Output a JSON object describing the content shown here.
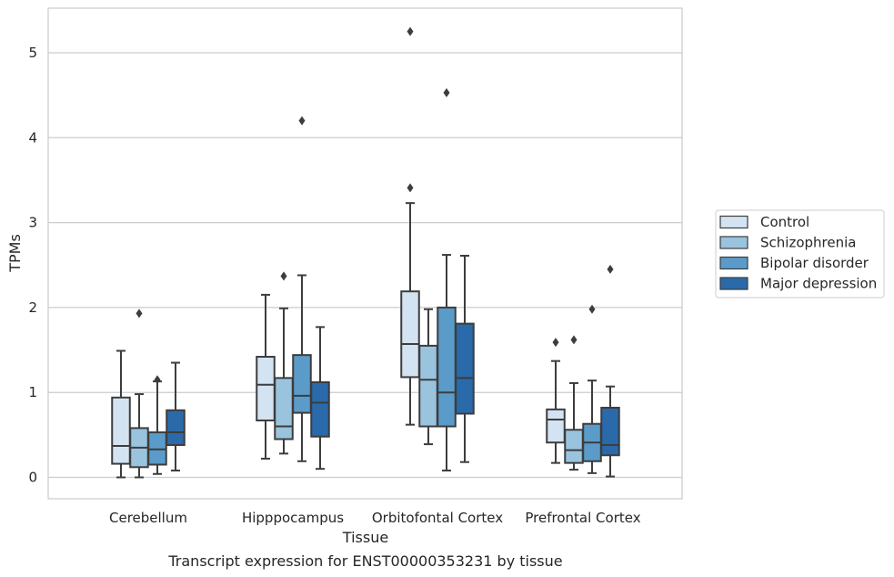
{
  "caption": "Transcript expression for ENST00000353231 by tissue",
  "chart_data": {
    "type": "box",
    "title": "",
    "xlabel": "Tissue",
    "ylabel": "TPMs",
    "ylim": [
      -0.25,
      5.5
    ],
    "yticks": [
      0,
      1,
      2,
      3,
      4,
      5
    ],
    "categories": [
      "Cerebellum",
      "Hipppocampus",
      "Orbitofontal Cortex",
      "Prefrontal Cortex"
    ],
    "grid": "horizontal",
    "legend_position": "right",
    "series": [
      {
        "name": "Control",
        "color": "#d3e3f2",
        "boxes": [
          {
            "whislo": 0.0,
            "q1": 0.16,
            "med": 0.37,
            "q3": 0.94,
            "whishi": 1.49,
            "fliers": []
          },
          {
            "whislo": 0.22,
            "q1": 0.67,
            "med": 1.09,
            "q3": 1.42,
            "whishi": 2.15,
            "fliers": []
          },
          {
            "whislo": 0.62,
            "q1": 1.18,
            "med": 1.57,
            "q3": 2.19,
            "whishi": 3.23,
            "fliers": [
              3.41,
              5.25
            ]
          },
          {
            "whislo": 0.17,
            "q1": 0.41,
            "med": 0.68,
            "q3": 0.8,
            "whishi": 1.37,
            "fliers": [
              1.59
            ]
          }
        ]
      },
      {
        "name": "Schizophrenia",
        "color": "#9ac4de",
        "boxes": [
          {
            "whislo": 0.0,
            "q1": 0.12,
            "med": 0.35,
            "q3": 0.58,
            "whishi": 0.98,
            "fliers": [
              1.93
            ]
          },
          {
            "whislo": 0.28,
            "q1": 0.45,
            "med": 0.6,
            "q3": 1.17,
            "whishi": 1.99,
            "fliers": [
              2.37
            ]
          },
          {
            "whislo": 0.39,
            "q1": 0.6,
            "med": 1.15,
            "q3": 1.55,
            "whishi": 1.98,
            "fliers": []
          },
          {
            "whislo": 0.09,
            "q1": 0.17,
            "med": 0.32,
            "q3": 0.56,
            "whishi": 1.11,
            "fliers": [
              1.62
            ]
          }
        ]
      },
      {
        "name": "Bipolar disorder",
        "color": "#5b9bc9",
        "boxes": [
          {
            "whislo": 0.04,
            "q1": 0.15,
            "med": 0.33,
            "q3": 0.53,
            "whishi": 1.13,
            "fliers": [
              1.15
            ]
          },
          {
            "whislo": 0.19,
            "q1": 0.76,
            "med": 0.96,
            "q3": 1.44,
            "whishi": 2.38,
            "fliers": [
              4.2
            ]
          },
          {
            "whislo": 0.08,
            "q1": 0.6,
            "med": 1.0,
            "q3": 2.0,
            "whishi": 2.62,
            "fliers": [
              4.53
            ]
          },
          {
            "whislo": 0.05,
            "q1": 0.19,
            "med": 0.41,
            "q3": 0.63,
            "whishi": 1.14,
            "fliers": [
              1.98
            ]
          }
        ]
      },
      {
        "name": "Major depression",
        "color": "#2a6aaa",
        "boxes": [
          {
            "whislo": 0.08,
            "q1": 0.38,
            "med": 0.53,
            "q3": 0.79,
            "whishi": 1.35,
            "fliers": []
          },
          {
            "whislo": 0.1,
            "q1": 0.48,
            "med": 0.88,
            "q3": 1.12,
            "whishi": 1.77,
            "fliers": []
          },
          {
            "whislo": 0.18,
            "q1": 0.75,
            "med": 1.17,
            "q3": 1.81,
            "whishi": 2.61,
            "fliers": []
          },
          {
            "whislo": 0.01,
            "q1": 0.26,
            "med": 0.38,
            "q3": 0.82,
            "whishi": 1.07,
            "fliers": [
              2.45
            ]
          }
        ]
      }
    ]
  }
}
